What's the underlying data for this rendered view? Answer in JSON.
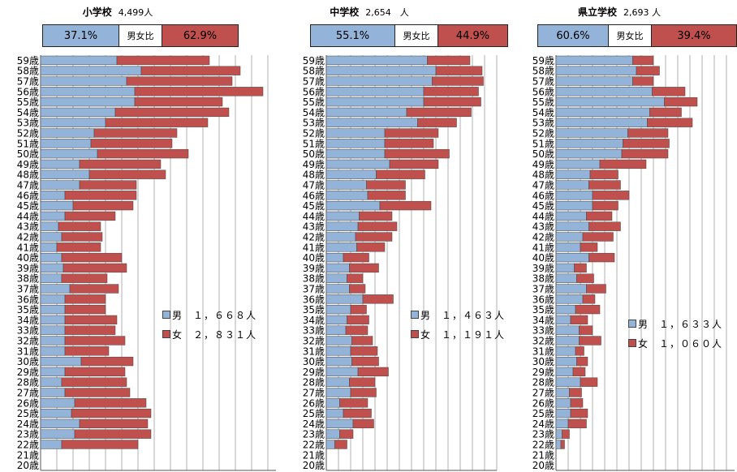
{
  "colors": {
    "male": "#94b3d9",
    "female": "#c0504d",
    "grid": "#b0b0b0",
    "edge": "#444444"
  },
  "ages": [
    "59歳",
    "58歳",
    "57歳",
    "56歳",
    "55歳",
    "54歳",
    "53歳",
    "52歳",
    "51歳",
    "50歳",
    "49歳",
    "48歳",
    "47歳",
    "46歳",
    "45歳",
    "44歳",
    "43歳",
    "42歳",
    "41歳",
    "40歳",
    "39歳",
    "38歳",
    "37歳",
    "36歳",
    "35歳",
    "34歳",
    "33歳",
    "32歳",
    "31歳",
    "30歳",
    "29歳",
    "28歳",
    "27歳",
    "26歳",
    "25歳",
    "24歳",
    "23歳",
    "22歳",
    "21歳",
    "20歳"
  ],
  "ratio_label": "男女比",
  "panels": [
    {
      "title": "小学校",
      "count": "4,499人",
      "male_ratio": "37.1%",
      "female_ratio": "62.9%",
      "legend_male": "男　１，６６８人",
      "legend_female": "女　２，８３１人"
    },
    {
      "title": "中学校",
      "count": "2,654　人",
      "male_ratio": "55.1%",
      "female_ratio": "44.9%",
      "legend_male": "男　１，４６３人",
      "legend_female": "女　１，１９１人"
    },
    {
      "title": "県立学校",
      "count": "2,693 人",
      "male_ratio": "60.6%",
      "female_ratio": "39.4%",
      "legend_male": "男　１，６３３人",
      "legend_female": "女　１，０６０人"
    }
  ],
  "chart_data": [
    {
      "type": "bar",
      "stacked": true,
      "orientation": "horizontal",
      "title": "小学校",
      "categories": [
        "59歳",
        "58歳",
        "57歳",
        "56歳",
        "55歳",
        "54歳",
        "53歳",
        "52歳",
        "51歳",
        "50歳",
        "49歳",
        "48歳",
        "47歳",
        "46歳",
        "45歳",
        "44歳",
        "43歳",
        "42歳",
        "41歳",
        "40歳",
        "39歳",
        "38歳",
        "37歳",
        "36歳",
        "35歳",
        "34歳",
        "33歳",
        "32歳",
        "31歳",
        "30歳",
        "29歳",
        "28歳",
        "27歳",
        "26歳",
        "25歳",
        "24歳",
        "23歳",
        "22歳",
        "21歳",
        "20歳"
      ],
      "xlim": [
        0,
        140
      ],
      "grid": true,
      "series": [
        {
          "name": "男",
          "values": [
            47,
            62,
            53,
            58,
            58,
            46,
            40,
            33,
            31,
            35,
            24,
            30,
            24,
            15,
            20,
            15,
            11,
            13,
            10,
            13,
            14,
            13,
            18,
            15,
            15,
            15,
            15,
            15,
            15,
            25,
            15,
            13,
            15,
            21,
            19,
            24,
            21,
            13,
            0,
            0
          ]
        },
        {
          "name": "女",
          "values": [
            57,
            61,
            65,
            79,
            54,
            70,
            63,
            51,
            50,
            56,
            50,
            47,
            35,
            44,
            37,
            31,
            26,
            25,
            27,
            37,
            39,
            28,
            30,
            25,
            25,
            32,
            31,
            37,
            27,
            32,
            37,
            40,
            40,
            44,
            49,
            42,
            47,
            47,
            0,
            0
          ]
        }
      ]
    },
    {
      "type": "bar",
      "stacked": true,
      "orientation": "horizontal",
      "title": "中学校",
      "categories": [
        "59歳",
        "58歳",
        "57歳",
        "56歳",
        "55歳",
        "54歳",
        "53歳",
        "52歳",
        "51歳",
        "50歳",
        "49歳",
        "48歳",
        "47歳",
        "46歳",
        "45歳",
        "44歳",
        "43歳",
        "42歳",
        "41歳",
        "40歳",
        "39歳",
        "38歳",
        "37歳",
        "36歳",
        "35歳",
        "34歳",
        "33歳",
        "32歳",
        "31歳",
        "30歳",
        "29歳",
        "28歳",
        "27歳",
        "26歳",
        "25歳",
        "24歳",
        "23歳",
        "22歳",
        "21歳",
        "20歳"
      ],
      "xlim": [
        0,
        140
      ],
      "grid": true,
      "series": [
        {
          "name": "男",
          "values": [
            83,
            90,
            87,
            80,
            80,
            66,
            75,
            48,
            48,
            48,
            52,
            41,
            33,
            34,
            44,
            27,
            26,
            24,
            25,
            14,
            19,
            17,
            19,
            30,
            20,
            17,
            16,
            21,
            20,
            21,
            26,
            19,
            20,
            11,
            14,
            22,
            11,
            7,
            0,
            0
          ]
        },
        {
          "name": "女",
          "values": [
            35,
            38,
            42,
            45,
            47,
            53,
            32,
            44,
            40,
            53,
            40,
            40,
            32,
            31,
            42,
            27,
            32,
            30,
            23,
            21,
            24,
            13,
            13,
            25,
            13,
            18,
            18,
            17,
            22,
            22,
            25,
            21,
            21,
            23,
            23,
            17,
            11,
            10,
            0,
            0
          ]
        }
      ]
    },
    {
      "type": "bar",
      "stacked": true,
      "orientation": "horizontal",
      "title": "県立学校",
      "categories": [
        "59歳",
        "58歳",
        "57歳",
        "56歳",
        "55歳",
        "54歳",
        "53歳",
        "52歳",
        "51歳",
        "50歳",
        "49歳",
        "48歳",
        "47歳",
        "46歳",
        "45歳",
        "44歳",
        "43歳",
        "42歳",
        "41歳",
        "40歳",
        "39歳",
        "38歳",
        "37歳",
        "36歳",
        "35歳",
        "34歳",
        "33歳",
        "32歳",
        "31歳",
        "30歳",
        "29歳",
        "28歳",
        "27歳",
        "26歳",
        "25歳",
        "24歳",
        "23歳",
        "22歳",
        "21歳",
        "20歳"
      ],
      "xlim": [
        0,
        140
      ],
      "grid": true,
      "series": [
        {
          "name": "男",
          "values": [
            63,
            66,
            63,
            79,
            89,
            77,
            75,
            59,
            55,
            54,
            36,
            28,
            27,
            30,
            30,
            25,
            27,
            22,
            20,
            27,
            15,
            17,
            25,
            22,
            16,
            12,
            19,
            19,
            16,
            17,
            14,
            20,
            11,
            12,
            12,
            10,
            5,
            4,
            0,
            0
          ]
        },
        {
          "name": "女",
          "values": [
            17,
            19,
            17,
            27,
            27,
            26,
            37,
            33,
            38,
            38,
            38,
            23,
            26,
            30,
            21,
            21,
            26,
            25,
            14,
            21,
            10,
            14,
            16,
            10,
            20,
            14,
            11,
            18,
            7,
            9,
            10,
            14,
            10,
            10,
            14,
            15,
            6,
            3,
            0,
            0
          ]
        }
      ]
    }
  ]
}
